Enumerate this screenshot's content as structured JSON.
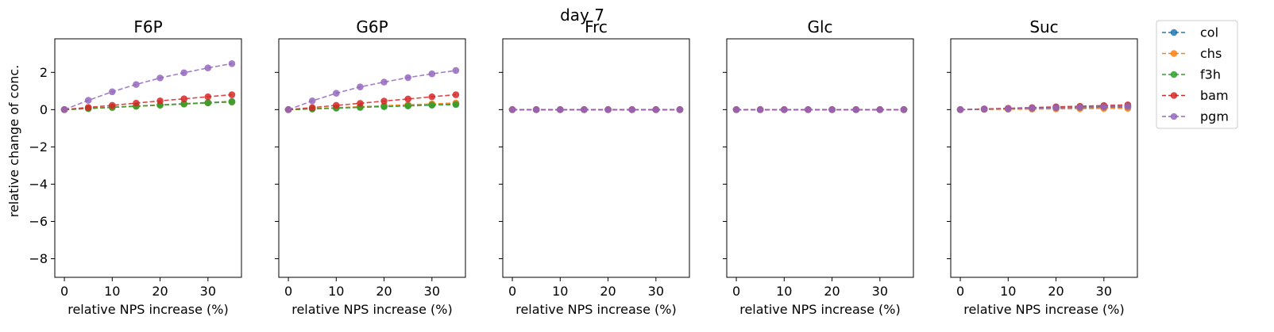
{
  "figure": {
    "suptitle": "day 7",
    "ylabel": "relative change of conc."
  },
  "chart_data": {
    "type": "line",
    "x": [
      0,
      5,
      10,
      15,
      20,
      25,
      30,
      35
    ],
    "xlabel": "relative NPS increase (%)",
    "ylabel": "relative change of conc.",
    "xlim": [
      -2,
      37
    ],
    "ylim": [
      -9,
      3.8
    ],
    "xticks": [
      "0",
      "10",
      "20",
      "30"
    ],
    "yticks": [
      "−8",
      "−6",
      "−4",
      "−2",
      "0",
      "2"
    ],
    "legend_position": "outside-right-top",
    "colors": {
      "col": "#1f77b4",
      "chs": "#ff7f0e",
      "f3h": "#2ca02c",
      "bam": "#d62728",
      "pgm": "#9467bd"
    },
    "series_names": [
      "col",
      "chs",
      "f3h",
      "bam",
      "pgm"
    ],
    "panels": [
      {
        "title": "F6P",
        "series": [
          {
            "name": "col",
            "values": [
              0,
              0.06,
              0.13,
              0.19,
              0.25,
              0.32,
              0.38,
              0.44
            ]
          },
          {
            "name": "chs",
            "values": [
              0,
              0.06,
              0.12,
              0.18,
              0.25,
              0.31,
              0.37,
              0.42
            ]
          },
          {
            "name": "f3h",
            "values": [
              0,
              0.06,
              0.12,
              0.18,
              0.24,
              0.3,
              0.36,
              0.41
            ]
          },
          {
            "name": "bam",
            "values": [
              0,
              0.12,
              0.23,
              0.35,
              0.47,
              0.58,
              0.69,
              0.8
            ]
          },
          {
            "name": "pgm",
            "values": [
              0,
              0.5,
              0.96,
              1.35,
              1.7,
              1.98,
              2.24,
              2.47
            ]
          }
        ]
      },
      {
        "title": "G6P",
        "series": [
          {
            "name": "col",
            "values": [
              0,
              0.04,
              0.09,
              0.14,
              0.18,
              0.23,
              0.27,
              0.31
            ]
          },
          {
            "name": "chs",
            "values": [
              0,
              0.05,
              0.1,
              0.16,
              0.21,
              0.26,
              0.31,
              0.36
            ]
          },
          {
            "name": "f3h",
            "values": [
              0,
              0.04,
              0.08,
              0.12,
              0.16,
              0.2,
              0.24,
              0.27
            ]
          },
          {
            "name": "bam",
            "values": [
              0,
              0.11,
              0.23,
              0.34,
              0.46,
              0.57,
              0.69,
              0.8
            ]
          },
          {
            "name": "pgm",
            "values": [
              0,
              0.47,
              0.88,
              1.22,
              1.48,
              1.72,
              1.92,
              2.1
            ]
          }
        ]
      },
      {
        "title": "Frc",
        "series": [
          {
            "name": "col",
            "values": [
              0,
              0,
              0,
              0,
              0,
              0,
              0,
              0
            ]
          },
          {
            "name": "chs",
            "values": [
              0,
              0,
              0,
              0,
              0,
              0,
              0,
              0
            ]
          },
          {
            "name": "f3h",
            "values": [
              0,
              0,
              0,
              0,
              0,
              0,
              0,
              0
            ]
          },
          {
            "name": "bam",
            "values": [
              0,
              0,
              0,
              0,
              0,
              0,
              0,
              0
            ]
          },
          {
            "name": "pgm",
            "values": [
              0,
              0,
              0,
              0,
              0,
              0,
              0,
              0
            ]
          }
        ]
      },
      {
        "title": "Glc",
        "series": [
          {
            "name": "col",
            "values": [
              0,
              0,
              0,
              0,
              0,
              0,
              0,
              0
            ]
          },
          {
            "name": "chs",
            "values": [
              0,
              0,
              0,
              0,
              0,
              0,
              0,
              0
            ]
          },
          {
            "name": "f3h",
            "values": [
              0,
              0,
              0,
              0,
              0,
              0,
              0,
              0
            ]
          },
          {
            "name": "bam",
            "values": [
              0,
              0,
              0,
              0,
              0,
              0,
              0,
              0
            ]
          },
          {
            "name": "pgm",
            "values": [
              0,
              0,
              0,
              0,
              0,
              0,
              0,
              0
            ]
          }
        ]
      },
      {
        "title": "Suc",
        "series": [
          {
            "name": "col",
            "values": [
              0,
              0.02,
              0.04,
              0.06,
              0.08,
              0.1,
              0.12,
              0.14
            ]
          },
          {
            "name": "chs",
            "values": [
              0,
              0.01,
              0.02,
              0.03,
              0.04,
              0.05,
              0.06,
              0.07
            ]
          },
          {
            "name": "f3h",
            "values": [
              0,
              0.03,
              0.06,
              0.09,
              0.12,
              0.15,
              0.18,
              0.2
            ]
          },
          {
            "name": "bam",
            "values": [
              0,
              0.04,
              0.07,
              0.11,
              0.15,
              0.18,
              0.22,
              0.26
            ]
          },
          {
            "name": "pgm",
            "values": [
              0,
              0.03,
              0.05,
              0.08,
              0.1,
              0.13,
              0.15,
              0.17
            ]
          }
        ]
      }
    ]
  }
}
